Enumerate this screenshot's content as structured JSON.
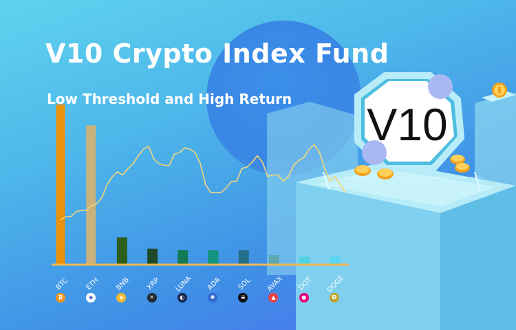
{
  "banner": {
    "title": "V10 Crypto Index Fund",
    "subtitle": "Low Threshold and High Return",
    "logo_text": "V10"
  },
  "chart_data": {
    "type": "bar",
    "categories": [
      "BTC",
      "ETH",
      "BNB",
      "XRP",
      "LUNA",
      "ADA",
      "SOL",
      "AVAX",
      "DOT",
      "DOGE"
    ],
    "values": [
      100,
      87,
      17,
      10,
      9,
      9,
      9,
      6,
      5,
      5
    ],
    "colors": [
      "#e8920e",
      "#c9b27e",
      "#2c5e1e",
      "#1e4a2a",
      "#147a55",
      "#14947e",
      "#256e8a",
      "#5fa8b0",
      "#4fd2e4",
      "#5ad6f5"
    ],
    "ylim": [
      0,
      100
    ],
    "axis_color": "#f0b850",
    "overlay_line_color": "#f5d67a",
    "overlay_line": [
      28,
      30,
      30,
      33,
      34,
      34,
      37,
      38,
      42,
      50,
      55,
      58,
      56,
      60,
      63,
      68,
      72,
      74,
      66,
      63,
      62,
      62,
      69,
      70,
      73,
      72,
      70,
      63,
      50,
      45,
      45,
      45,
      48,
      52,
      52,
      60,
      61,
      64,
      68,
      64,
      55,
      56,
      56,
      52,
      55,
      62,
      65,
      67,
      72,
      75,
      70,
      60,
      52,
      55,
      50,
      45
    ]
  },
  "coins": [
    {
      "symbol": "BTC",
      "icon": "btc-icon",
      "color": "#f7931a",
      "glyph": "₿"
    },
    {
      "symbol": "ETH",
      "icon": "eth-icon",
      "color": "#ffffff",
      "glyph": "◆"
    },
    {
      "symbol": "BNB",
      "icon": "bnb-icon",
      "color": "#f3ba2f",
      "glyph": "◈"
    },
    {
      "symbol": "XRP",
      "icon": "xrp-icon",
      "color": "#23292f",
      "glyph": "✕"
    },
    {
      "symbol": "LUNA",
      "icon": "luna-icon",
      "color": "#172852",
      "glyph": "◐"
    },
    {
      "symbol": "ADA",
      "icon": "ada-icon",
      "color": "#3468d1",
      "glyph": "✺"
    },
    {
      "symbol": "SOL",
      "icon": "sol-icon",
      "color": "#111111",
      "glyph": "≡"
    },
    {
      "symbol": "AVAX",
      "icon": "avax-icon",
      "color": "#e84142",
      "glyph": "▲"
    },
    {
      "symbol": "DOT",
      "icon": "dot-icon",
      "color": "#e6007a",
      "glyph": "●"
    },
    {
      "symbol": "DOGE",
      "icon": "doge-icon",
      "color": "#c2a633",
      "glyph": "Ð"
    }
  ]
}
